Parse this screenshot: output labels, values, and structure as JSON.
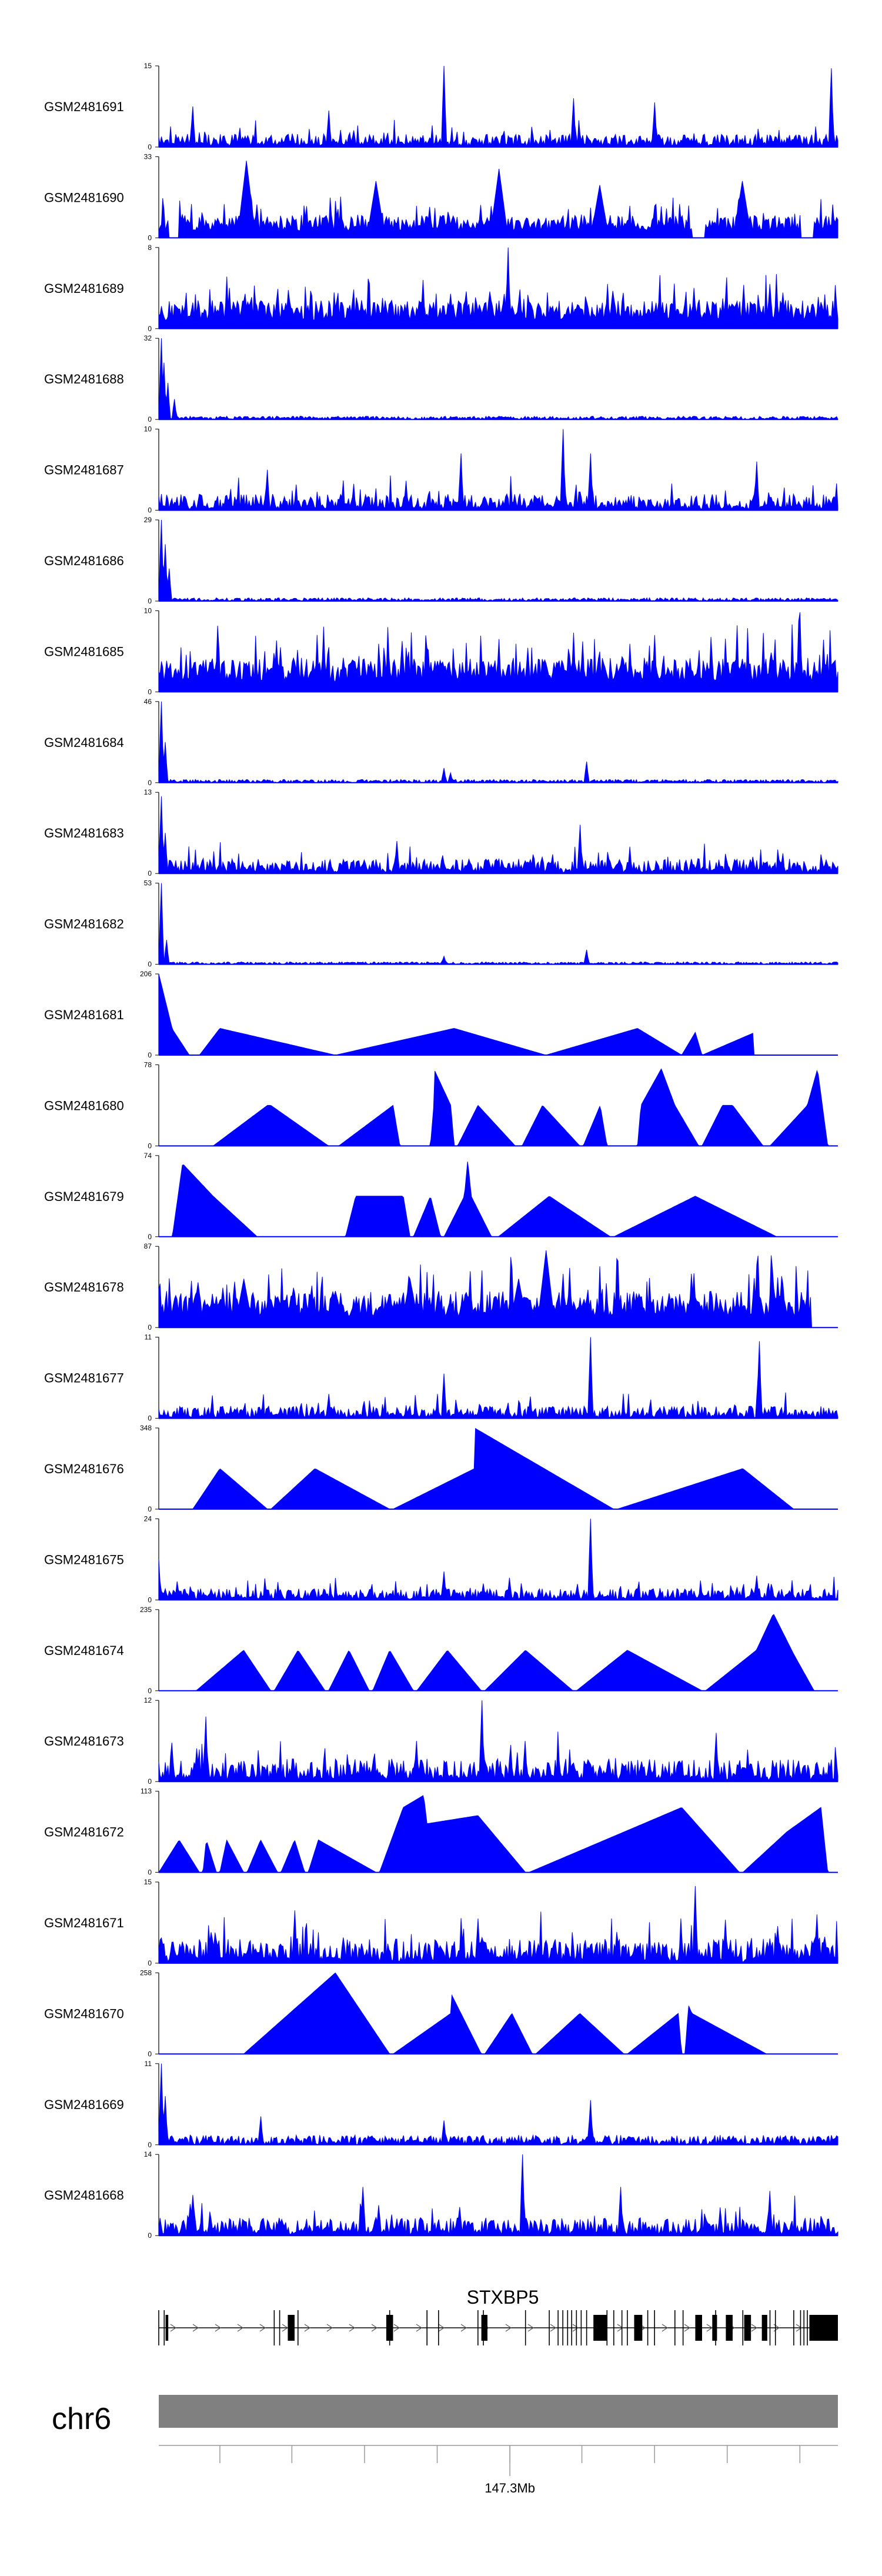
{
  "chart_data": {
    "type": "genome-browser-area",
    "title": "",
    "track_color": "#0000ff",
    "tracks": [
      {
        "label": "GSM2481691",
        "ymax": 15,
        "ymin": 0,
        "style": "spiky",
        "seed": 1,
        "level": 0.16,
        "peaks": [
          [
            0.42,
            1.0
          ],
          [
            0.99,
            0.97
          ],
          [
            0.61,
            0.6
          ],
          [
            0.25,
            0.45
          ],
          [
            0.73,
            0.55
          ],
          [
            0.05,
            0.5
          ]
        ],
        "gaps": []
      },
      {
        "label": "GSM2481690",
        "ymax": 33,
        "ymin": 0,
        "style": "dense_tri",
        "seed": 2,
        "level": 0.28,
        "peaks": [
          [
            0.13,
            0.95
          ],
          [
            0.32,
            0.7
          ],
          [
            0.5,
            0.85
          ],
          [
            0.65,
            0.65
          ],
          [
            0.86,
            0.7
          ]
        ],
        "gaps": [
          [
            0.015,
            0.03
          ],
          [
            0.785,
            0.805
          ],
          [
            0.945,
            0.965
          ]
        ]
      },
      {
        "label": "GSM2481689",
        "ymax": 8,
        "ymin": 0,
        "style": "dense",
        "seed": 3,
        "level": 0.35,
        "peaks": [
          [
            0.515,
            1.0
          ],
          [
            0.39,
            0.6
          ],
          [
            0.66,
            0.55
          ],
          [
            0.9,
            0.55
          ]
        ],
        "gaps": []
      },
      {
        "label": "GSM2481688",
        "ymax": 32,
        "ymin": 0,
        "style": "low",
        "seed": 4,
        "level": 0.04,
        "peaks": [
          [
            0.003,
            1.0
          ],
          [
            0.008,
            0.7
          ],
          [
            0.014,
            0.45
          ],
          [
            0.023,
            0.25
          ]
        ],
        "gaps": []
      },
      {
        "label": "GSM2481687",
        "ymax": 10,
        "ymin": 0,
        "style": "spiky",
        "seed": 5,
        "level": 0.2,
        "peaks": [
          [
            0.595,
            1.0
          ],
          [
            0.445,
            0.7
          ],
          [
            0.635,
            0.7
          ],
          [
            0.16,
            0.5
          ],
          [
            0.88,
            0.6
          ]
        ],
        "gaps": []
      },
      {
        "label": "GSM2481686",
        "ymax": 29,
        "ymin": 0,
        "style": "low",
        "seed": 6,
        "level": 0.04,
        "peaks": [
          [
            0.003,
            1.0
          ],
          [
            0.009,
            0.7
          ],
          [
            0.016,
            0.4
          ]
        ],
        "gaps": []
      },
      {
        "label": "GSM2481685",
        "ymax": 10,
        "ymin": 0,
        "style": "dense",
        "seed": 7,
        "level": 0.42,
        "peaks": [
          [
            0.945,
            0.98
          ],
          [
            0.5,
            0.65
          ],
          [
            0.73,
            0.7
          ],
          [
            0.18,
            0.55
          ]
        ],
        "gaps": []
      },
      {
        "label": "GSM2481684",
        "ymax": 46,
        "ymin": 0,
        "style": "low",
        "seed": 8,
        "level": 0.04,
        "peaks": [
          [
            0.003,
            1.0
          ],
          [
            0.01,
            0.5
          ],
          [
            0.63,
            0.26
          ],
          [
            0.42,
            0.18
          ],
          [
            0.43,
            0.12
          ]
        ],
        "gaps": []
      },
      {
        "label": "GSM2481683",
        "ymax": 13,
        "ymin": 0,
        "style": "mid",
        "seed": 9,
        "level": 0.18,
        "peaks": [
          [
            0.003,
            0.95
          ],
          [
            0.62,
            0.6
          ],
          [
            0.009,
            0.5
          ],
          [
            0.35,
            0.4
          ]
        ],
        "gaps": []
      },
      {
        "label": "GSM2481682",
        "ymax": 53,
        "ymin": 0,
        "style": "low",
        "seed": 10,
        "level": 0.03,
        "peaks": [
          [
            0.003,
            1.0
          ],
          [
            0.63,
            0.18
          ],
          [
            0.42,
            0.1
          ],
          [
            0.012,
            0.3
          ]
        ],
        "gaps": []
      },
      {
        "label": "GSM2481681",
        "ymax": 206,
        "ymin": 0,
        "style": "tri",
        "seed": 11,
        "level": 0.22,
        "peaks": [
          [
            0.0,
            1.0
          ],
          [
            0.02,
            0.32
          ],
          [
            0.09,
            0.33
          ],
          [
            0.435,
            0.33
          ],
          [
            0.705,
            0.33
          ],
          [
            0.79,
            0.28
          ],
          [
            0.875,
            0.27
          ]
        ],
        "gaps": [
          [
            0.045,
            0.06
          ],
          [
            0.26,
            0.26
          ],
          [
            0.57,
            0.57
          ],
          [
            0.77,
            0.77
          ],
          [
            0.8,
            0.8
          ]
        ]
      },
      {
        "label": "GSM2481680",
        "ymax": 78,
        "ymin": 0,
        "style": "tri",
        "seed": 12,
        "level": 0.45,
        "peaks": [
          [
            0.16,
            0.5
          ],
          [
            0.345,
            0.5
          ],
          [
            0.405,
            0.5
          ],
          [
            0.43,
            0.5
          ],
          [
            0.47,
            0.5
          ],
          [
            0.565,
            0.5
          ],
          [
            0.65,
            0.5
          ],
          [
            0.71,
            0.5
          ],
          [
            0.76,
            0.5
          ],
          [
            0.83,
            0.5
          ],
          [
            0.955,
            0.5
          ],
          [
            0.405,
            0.95
          ],
          [
            0.74,
            0.95
          ],
          [
            0.97,
            0.95
          ],
          [
            0.165,
            0.5
          ],
          [
            0.845,
            0.5
          ]
        ],
        "gaps": [
          [
            0.0,
            0.08
          ],
          [
            0.25,
            0.265
          ],
          [
            0.355,
            0.36
          ],
          [
            0.395,
            0.4
          ],
          [
            0.435,
            0.44
          ],
          [
            0.525,
            0.535
          ],
          [
            0.62,
            0.625
          ],
          [
            0.66,
            0.665
          ],
          [
            0.7,
            0.705
          ],
          [
            0.795,
            0.8
          ],
          [
            0.89,
            0.9
          ],
          [
            0.985,
            1.0
          ]
        ]
      },
      {
        "label": "GSM2481679",
        "ymax": 74,
        "ymin": 0,
        "style": "tri",
        "seed": 13,
        "level": 0.5,
        "peaks": [
          [
            0.08,
            0.5
          ],
          [
            0.29,
            0.5
          ],
          [
            0.335,
            0.5
          ],
          [
            0.4,
            0.5
          ],
          [
            0.45,
            0.5
          ],
          [
            0.46,
            0.5
          ],
          [
            0.575,
            0.5
          ],
          [
            0.79,
            0.5
          ],
          [
            0.035,
            0.9
          ],
          [
            0.455,
            0.95
          ],
          [
            0.36,
            0.5
          ]
        ],
        "gaps": [
          [
            0.0,
            0.02
          ],
          [
            0.145,
            0.15
          ],
          [
            0.27,
            0.275
          ],
          [
            0.37,
            0.375
          ],
          [
            0.415,
            0.42
          ],
          [
            0.49,
            0.5
          ],
          [
            0.665,
            0.67
          ],
          [
            0.91,
            1.0
          ]
        ]
      },
      {
        "label": "GSM2481678",
        "ymax": 87,
        "ymin": 0,
        "style": "dense_tri",
        "seed": 14,
        "level": 0.45,
        "peaks": [
          [
            0.57,
            0.95
          ],
          [
            0.125,
            0.6
          ],
          [
            0.37,
            0.6
          ],
          [
            0.53,
            0.6
          ],
          [
            0.26,
            0.45
          ],
          [
            0.91,
            0.35
          ]
        ],
        "gaps": [
          [
            0.96,
            1.0
          ]
        ]
      },
      {
        "label": "GSM2481677",
        "ymax": 11,
        "ymin": 0,
        "style": "mid",
        "seed": 15,
        "level": 0.15,
        "peaks": [
          [
            0.635,
            1.0
          ],
          [
            0.885,
            0.95
          ],
          [
            0.42,
            0.55
          ],
          [
            0.25,
            0.3
          ]
        ],
        "gaps": []
      },
      {
        "label": "GSM2481676",
        "ymax": 348,
        "ymin": 0,
        "style": "tri",
        "seed": 16,
        "level": 0.35,
        "peaks": [
          [
            0.09,
            0.5
          ],
          [
            0.23,
            0.5
          ],
          [
            0.465,
            0.5
          ],
          [
            0.86,
            0.5
          ],
          [
            0.465,
            1.0
          ]
        ],
        "gaps": [
          [
            0.0,
            0.05
          ],
          [
            0.16,
            0.165
          ],
          [
            0.34,
            0.345
          ],
          [
            0.67,
            0.675
          ],
          [
            0.935,
            1.0
          ]
        ]
      },
      {
        "label": "GSM2481675",
        "ymax": 24,
        "ymin": 0,
        "style": "mid",
        "seed": 17,
        "level": 0.14,
        "peaks": [
          [
            0.635,
            1.0
          ],
          [
            0.0,
            0.5
          ],
          [
            0.42,
            0.35
          ],
          [
            0.88,
            0.3
          ]
        ],
        "gaps": []
      },
      {
        "label": "GSM2481674",
        "ymax": 235,
        "ymin": 0,
        "style": "tri",
        "seed": 18,
        "level": 0.35,
        "peaks": [
          [
            0.125,
            0.5
          ],
          [
            0.205,
            0.5
          ],
          [
            0.28,
            0.5
          ],
          [
            0.34,
            0.5
          ],
          [
            0.425,
            0.5
          ],
          [
            0.54,
            0.5
          ],
          [
            0.69,
            0.5
          ],
          [
            0.88,
            0.5
          ],
          [
            0.905,
            0.95
          ],
          [
            0.935,
            0.45
          ]
        ],
        "gaps": [
          [
            0.0,
            0.055
          ],
          [
            0.165,
            0.17
          ],
          [
            0.245,
            0.25
          ],
          [
            0.31,
            0.315
          ],
          [
            0.375,
            0.38
          ],
          [
            0.475,
            0.48
          ],
          [
            0.61,
            0.615
          ],
          [
            0.8,
            0.805
          ],
          [
            0.965,
            1.0
          ]
        ]
      },
      {
        "label": "GSM2481673",
        "ymax": 12,
        "ymin": 0,
        "style": "spiky",
        "seed": 19,
        "level": 0.28,
        "peaks": [
          [
            0.475,
            1.0
          ],
          [
            0.07,
            0.8
          ],
          [
            0.38,
            0.5
          ],
          [
            0.54,
            0.5
          ],
          [
            0.82,
            0.6
          ]
        ],
        "gaps": []
      },
      {
        "label": "GSM2481672",
        "ymax": 113,
        "ymin": 0,
        "style": "tri",
        "seed": 20,
        "level": 0.45,
        "peaks": [
          [
            0.03,
            0.4
          ],
          [
            0.07,
            0.4
          ],
          [
            0.1,
            0.4
          ],
          [
            0.15,
            0.4
          ],
          [
            0.2,
            0.4
          ],
          [
            0.235,
            0.4
          ],
          [
            0.36,
            0.8
          ],
          [
            0.395,
            0.6
          ],
          [
            0.47,
            0.7
          ],
          [
            0.77,
            0.8
          ],
          [
            0.925,
            0.5
          ],
          [
            0.39,
            0.95
          ],
          [
            0.975,
            0.8
          ]
        ],
        "gaps": [
          [
            0.0,
            0.0
          ],
          [
            0.06,
            0.065
          ],
          [
            0.085,
            0.09
          ],
          [
            0.125,
            0.13
          ],
          [
            0.175,
            0.18
          ],
          [
            0.215,
            0.22
          ],
          [
            0.32,
            0.325
          ],
          [
            0.54,
            0.545
          ],
          [
            0.855,
            0.86
          ],
          [
            0.985,
            1.0
          ]
        ]
      },
      {
        "label": "GSM2481671",
        "ymax": 15,
        "ymin": 0,
        "style": "spiky",
        "seed": 21,
        "level": 0.3,
        "peaks": [
          [
            0.79,
            0.95
          ],
          [
            0.2,
            0.65
          ],
          [
            0.47,
            0.55
          ],
          [
            0.97,
            0.6
          ]
        ],
        "gaps": []
      },
      {
        "label": "GSM2481670",
        "ymax": 258,
        "ymin": 0,
        "style": "tri",
        "seed": 22,
        "level": 0.45,
        "peaks": [
          [
            0.26,
            1.0
          ],
          [
            0.43,
            0.5
          ],
          [
            0.52,
            0.5
          ],
          [
            0.62,
            0.5
          ],
          [
            0.765,
            0.5
          ],
          [
            0.785,
            0.5
          ],
          [
            0.43,
            0.75
          ],
          [
            0.78,
            0.6
          ]
        ],
        "gaps": [
          [
            0.0,
            0.125
          ],
          [
            0.34,
            0.345
          ],
          [
            0.475,
            0.48
          ],
          [
            0.55,
            0.555
          ],
          [
            0.685,
            0.69
          ],
          [
            0.77,
            0.775
          ],
          [
            0.895,
            1.0
          ]
        ]
      },
      {
        "label": "GSM2481669",
        "ymax": 11,
        "ymin": 0,
        "style": "low",
        "seed": 23,
        "level": 0.12,
        "peaks": [
          [
            0.003,
            1.0
          ],
          [
            0.01,
            0.6
          ],
          [
            0.635,
            0.55
          ],
          [
            0.15,
            0.35
          ],
          [
            0.42,
            0.3
          ]
        ],
        "gaps": []
      },
      {
        "label": "GSM2481668",
        "ymax": 14,
        "ymin": 0,
        "style": "mid",
        "seed": 24,
        "level": 0.22,
        "peaks": [
          [
            0.535,
            1.0
          ],
          [
            0.3,
            0.6
          ],
          [
            0.68,
            0.6
          ],
          [
            0.9,
            0.55
          ],
          [
            0.05,
            0.5
          ]
        ],
        "gaps": []
      }
    ],
    "gene": {
      "name": "STXBP5",
      "strand": "+",
      "exons": [
        [
          0.01,
          0.014
        ],
        [
          0.19,
          0.2
        ],
        [
          0.335,
          0.345
        ],
        [
          0.475,
          0.484
        ],
        [
          0.64,
          0.66
        ],
        [
          0.7,
          0.712
        ],
        [
          0.79,
          0.8
        ],
        [
          0.815,
          0.822
        ],
        [
          0.835,
          0.845
        ],
        [
          0.862,
          0.872
        ],
        [
          0.888,
          0.896
        ],
        [
          0.958,
          1.0
        ]
      ],
      "intron_marks": [
        0.0,
        0.008,
        0.17,
        0.178,
        0.205,
        0.34,
        0.395,
        0.395,
        0.412,
        0.47,
        0.478,
        0.54,
        0.575,
        0.588,
        0.595,
        0.602,
        0.608,
        0.615,
        0.622,
        0.63,
        0.66,
        0.67,
        0.682,
        0.69,
        0.72,
        0.73,
        0.76,
        0.772,
        0.82,
        0.86,
        0.9,
        0.908,
        0.935,
        0.945,
        0.95,
        0.955
      ]
    },
    "ideogram": {
      "chromosome": "chr6",
      "color": "#808080",
      "ticks": [
        0.09,
        0.196,
        0.303,
        0.41,
        0.517,
        0.623,
        0.73,
        0.837,
        0.944
      ],
      "major_tick": 0.517,
      "major_label": "147.3Mb"
    }
  }
}
